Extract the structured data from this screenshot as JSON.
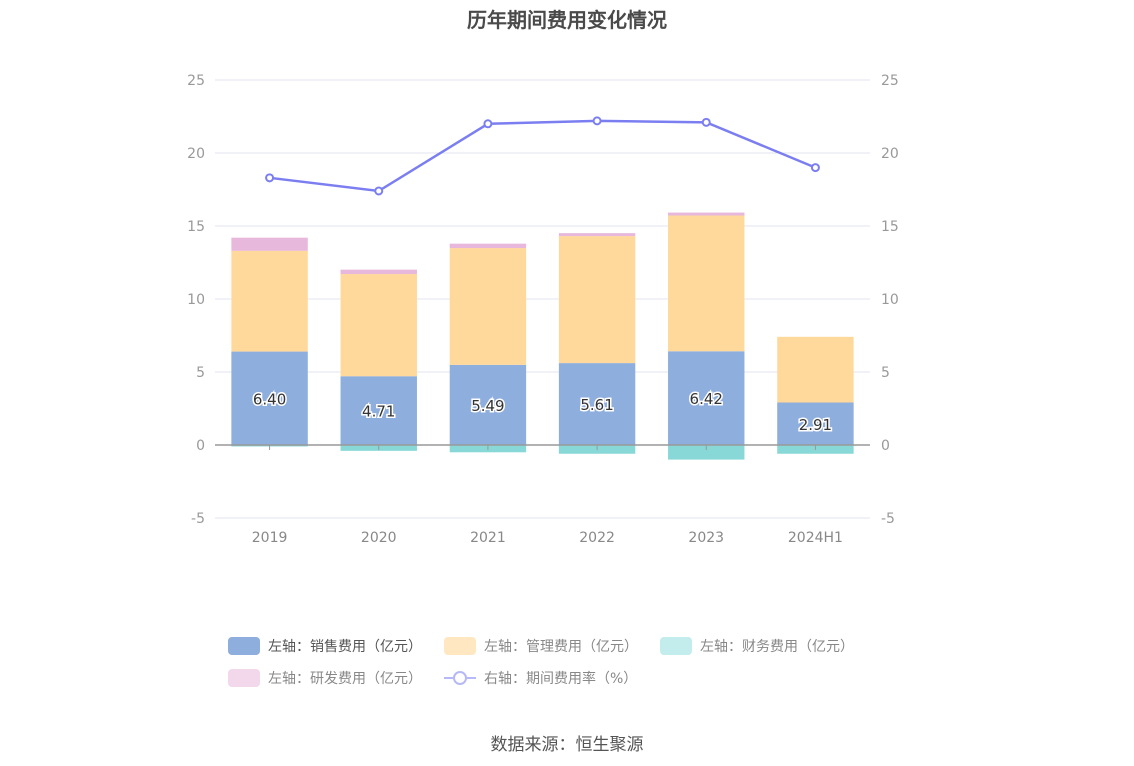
{
  "title": "历年期间费用变化情况",
  "source": "数据来源：恒生聚源",
  "colors": {
    "sales": "#8eaedd",
    "admin": "#ffd99b",
    "finance": "#88d8d8",
    "rd": "#e7b7dc",
    "rate": "#7b7ef0",
    "grid": "#e3e6f0",
    "axis": "#999999"
  },
  "legend": [
    {
      "label": "左轴：销售费用（亿元）",
      "swatch": "#8eaedd",
      "kind": "bar",
      "active": true
    },
    {
      "label": "左轴：管理费用（亿元）",
      "swatch": "#ffe7c2",
      "kind": "bar",
      "active": false
    },
    {
      "label": "左轴：财务费用（亿元）",
      "swatch": "#c3ecec",
      "kind": "bar",
      "active": false
    },
    {
      "label": "左轴：研发费用（亿元）",
      "swatch": "#f3d8ec",
      "kind": "bar",
      "active": false
    },
    {
      "label": "右轴：期间费用率（%）",
      "swatch": "#b6b9f5",
      "kind": "line",
      "active": false
    }
  ],
  "chart_data": {
    "type": "bar",
    "categories": [
      "2019",
      "2020",
      "2021",
      "2022",
      "2023",
      "2024H1"
    ],
    "left_axis": {
      "ylim": [
        -5,
        25
      ],
      "ticks": [
        "25",
        "20",
        "15",
        "10",
        "5",
        "0",
        "-5"
      ]
    },
    "right_axis": {
      "ylim": [
        -5,
        25
      ],
      "ticks": [
        "25",
        "20",
        "15",
        "10",
        "5",
        "0",
        "-5"
      ]
    },
    "series": [
      {
        "name": "左轴：销售费用（亿元）",
        "axis": "left",
        "values": [
          6.4,
          4.71,
          5.49,
          5.61,
          6.42,
          2.91
        ],
        "labels": [
          "6.40",
          "4.71",
          "5.49",
          "5.61",
          "6.42",
          "2.91"
        ]
      },
      {
        "name": "左轴：管理费用（亿元）",
        "axis": "left",
        "values": [
          6.9,
          7.0,
          8.0,
          8.7,
          9.3,
          4.5
        ]
      },
      {
        "name": "左轴：财务费用（亿元）",
        "axis": "left",
        "values": [
          -0.1,
          -0.4,
          -0.5,
          -0.6,
          -1.0,
          -0.6
        ]
      },
      {
        "name": "左轴：研发费用（亿元）",
        "axis": "left",
        "values": [
          0.9,
          0.3,
          0.3,
          0.2,
          0.2,
          0.0
        ]
      },
      {
        "name": "右轴：期间费用率（%）",
        "axis": "right",
        "type": "line",
        "values": [
          18.3,
          17.4,
          22.0,
          22.2,
          22.1,
          19.0
        ]
      }
    ]
  }
}
